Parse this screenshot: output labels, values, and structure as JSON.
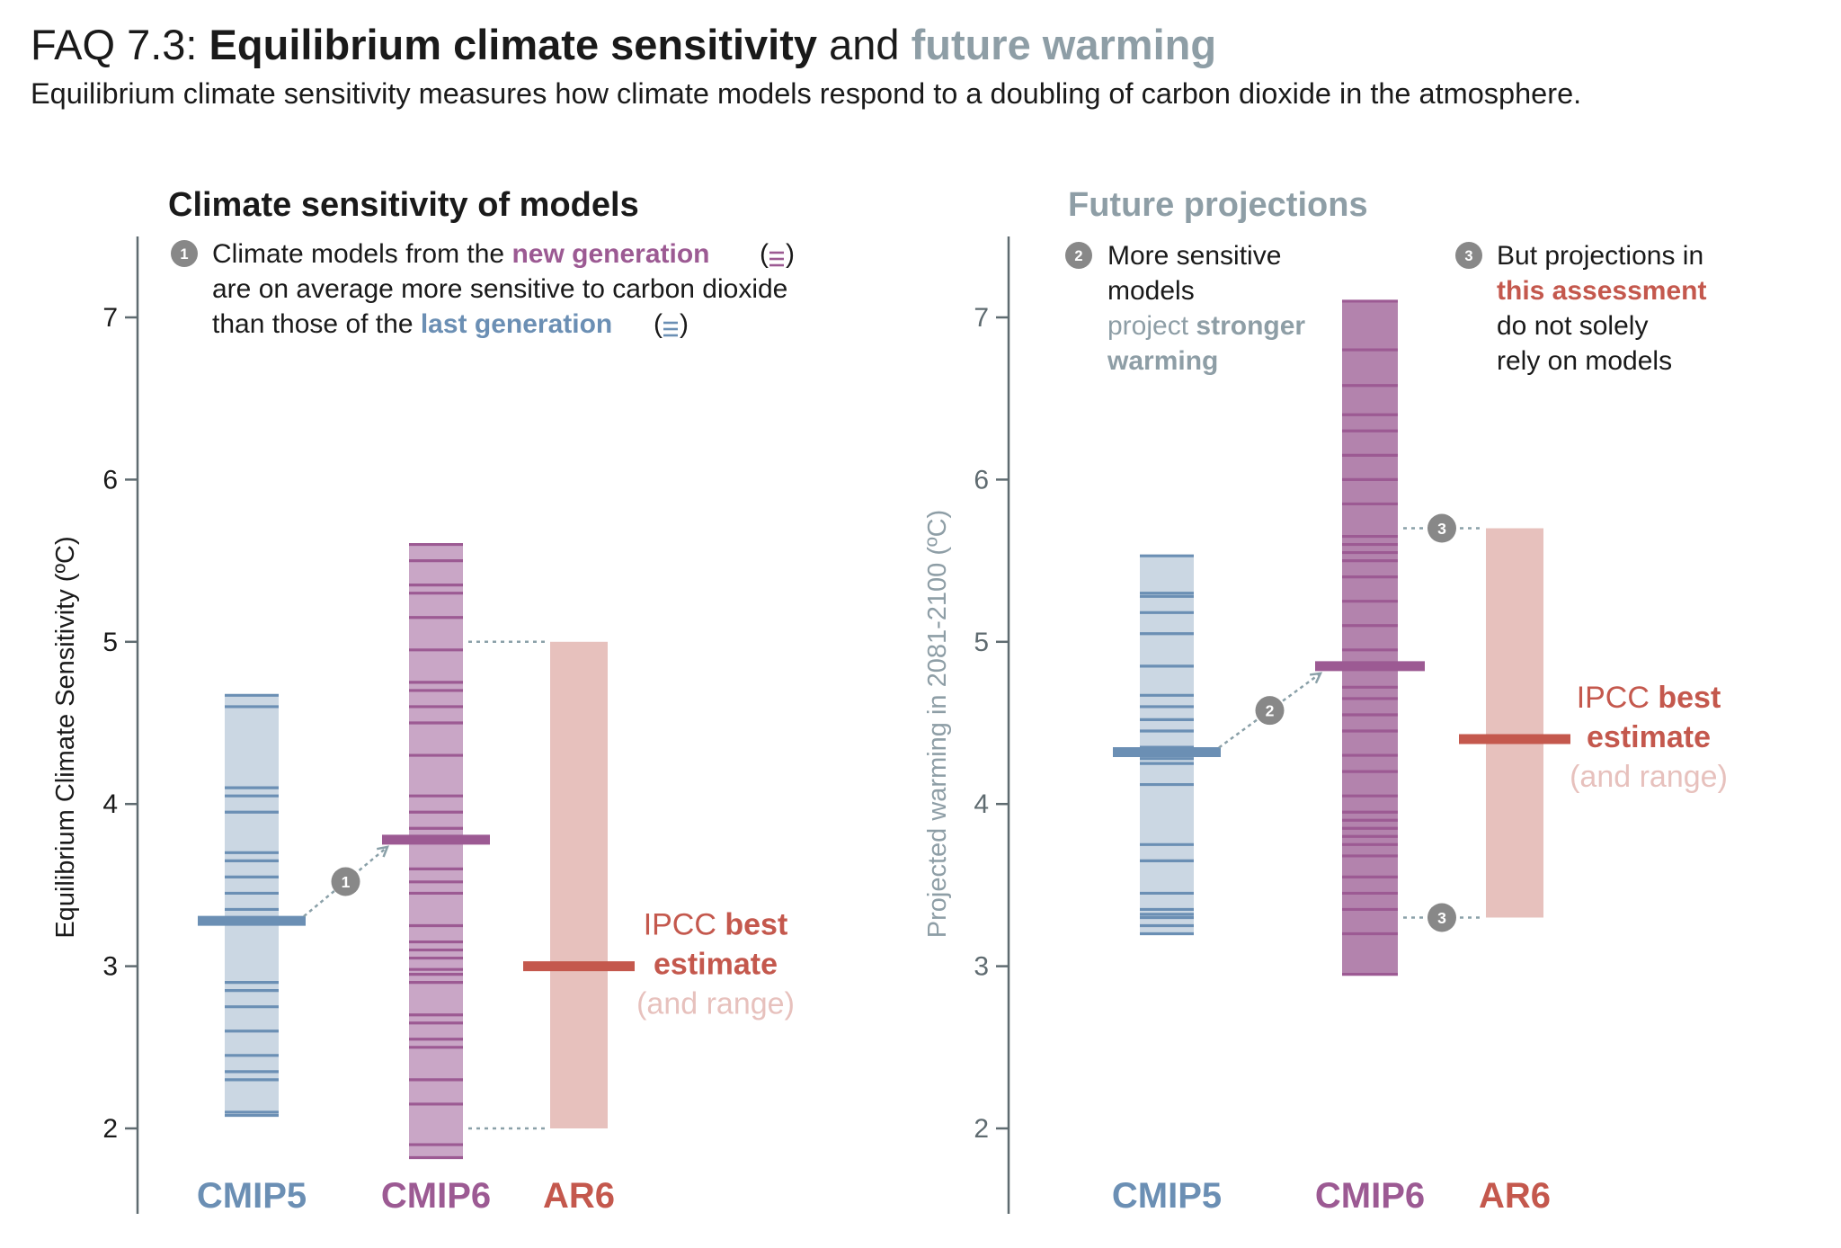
{
  "header": {
    "faq_label": "FAQ 7.3:",
    "title_bold": "Equilibrium climate sensitivity",
    "title_and": "and",
    "title_gray": "future warming",
    "subtitle": "Equilibrium climate sensitivity measures how climate models respond to a doubling of carbon dioxide in the atmosphere."
  },
  "colors": {
    "cmip5": "#6b8fb4",
    "cmip5_fill": "#cbd7e3",
    "cmip6": "#9c5a93",
    "cmip6_fill": "#c9a6c6",
    "cmip6_fill_right": "#b383ad",
    "ar6": "#c4584d",
    "ar6_fill": "#e7c1bd",
    "gray_text": "#8e9ea6",
    "axis": "#5f6b70",
    "dot_line": "#8aa0a8",
    "badge": "#888888"
  },
  "chart_data": [
    {
      "type": "table",
      "panel": "left",
      "title": "Climate sensitivity of models",
      "ylabel": "Equilibrium Climate Sensitivity (ºC)",
      "ylim": [
        1.5,
        7.5
      ],
      "yticks": [
        2,
        3,
        4,
        5,
        6,
        7
      ],
      "categories": [
        "CMIP5",
        "CMIP6",
        "AR6"
      ],
      "annotation": {
        "number": "1",
        "line1": "Climate models from the ",
        "new_generation": "new generation",
        "line2": "are on average more sensitive to carbon dioxide",
        "line3": "than those of the ",
        "last_generation": "last generation"
      },
      "cmip5_models": [
        2.08,
        2.1,
        2.3,
        2.35,
        2.45,
        2.6,
        2.75,
        2.85,
        2.9,
        3.35,
        3.45,
        3.55,
        3.65,
        3.7,
        3.95,
        4.05,
        4.1,
        4.6,
        4.67
      ],
      "cmip5_mean": 3.28,
      "cmip6_models": [
        1.82,
        1.9,
        2.15,
        2.3,
        2.5,
        2.55,
        2.65,
        2.7,
        2.9,
        2.95,
        2.98,
        3.05,
        3.1,
        3.15,
        3.25,
        3.45,
        3.52,
        3.6,
        3.85,
        3.95,
        4.05,
        4.3,
        4.5,
        4.6,
        4.7,
        4.75,
        4.95,
        5.15,
        5.3,
        5.35,
        5.5,
        5.6
      ],
      "cmip6_mean": 3.78,
      "ar6_best": 3.0,
      "ar6_range": [
        2.0,
        5.0
      ],
      "ipcc_label": {
        "ipcc": "IPCC",
        "best": "best",
        "estimate": "estimate",
        "range": "(and range)"
      }
    },
    {
      "type": "table",
      "panel": "right",
      "title": "Future projections",
      "ylabel": "Projected warming in 2081-2100 (ºC)",
      "ylim": [
        1.5,
        7.5
      ],
      "yticks": [
        2,
        3,
        4,
        5,
        6,
        7
      ],
      "categories": [
        "CMIP5",
        "CMIP6",
        "AR6"
      ],
      "annotation2": {
        "number": "2",
        "lines": [
          "More sensitive",
          "models"
        ],
        "gray_prefix": "project ",
        "gray_bold_1": "stronger",
        "gray_bold_2": "warming"
      },
      "annotation3": {
        "number": "3",
        "line1": "But projections in",
        "line2": "this assessment",
        "line3": "do not solely",
        "line4": "rely on models"
      },
      "cmip5_models": [
        3.2,
        3.25,
        3.3,
        3.32,
        3.35,
        3.45,
        3.65,
        3.75,
        4.12,
        4.25,
        4.28,
        4.35,
        4.45,
        4.52,
        4.6,
        4.67,
        4.85,
        5.05,
        5.18,
        5.28,
        5.3,
        5.53
      ],
      "cmip5_mean": 4.32,
      "cmip6_models": [
        2.95,
        3.2,
        3.35,
        3.45,
        3.55,
        3.68,
        3.75,
        3.8,
        3.85,
        3.9,
        3.95,
        4.05,
        4.2,
        4.3,
        4.45,
        4.55,
        4.65,
        4.72,
        4.95,
        5.1,
        5.25,
        5.4,
        5.5,
        5.55,
        5.6,
        5.65,
        5.85,
        6.0,
        6.15,
        6.3,
        6.4,
        6.58,
        6.8,
        7.1
      ],
      "cmip6_mean": 4.85,
      "ar6_best": 4.4,
      "ar6_range": [
        3.3,
        5.7
      ],
      "ipcc_label": {
        "ipcc": "IPCC",
        "best": "best",
        "estimate": "estimate",
        "range": "(and range)"
      }
    }
  ]
}
